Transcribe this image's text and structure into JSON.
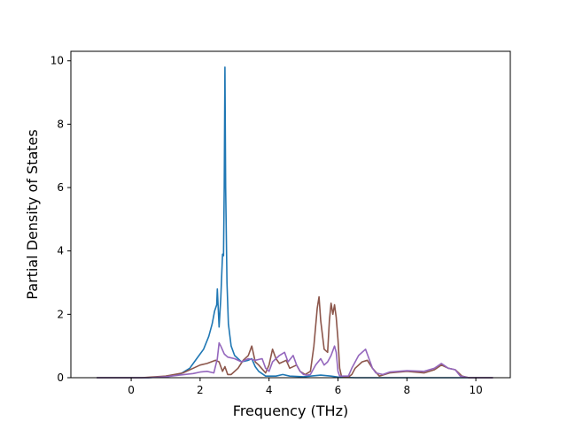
{
  "chart_data": {
    "type": "line",
    "xlabel": "Frequency (THz)",
    "ylabel": "Partial Density of States",
    "xlim": [
      -1.75,
      11.0
    ],
    "ylim": [
      0,
      10.3
    ],
    "x_ticks": [
      0,
      2,
      4,
      6,
      8,
      10
    ],
    "y_ticks": [
      0,
      2,
      4,
      6,
      8,
      10
    ],
    "grid": false,
    "series": [
      {
        "color": "#1f77b4",
        "points": [
          [
            -1.0,
            0
          ],
          [
            0.5,
            0
          ],
          [
            1.0,
            0.03
          ],
          [
            1.4,
            0.1
          ],
          [
            1.7,
            0.3
          ],
          [
            1.9,
            0.6
          ],
          [
            2.1,
            0.9
          ],
          [
            2.25,
            1.3
          ],
          [
            2.35,
            1.7
          ],
          [
            2.42,
            2.1
          ],
          [
            2.48,
            2.3
          ],
          [
            2.5,
            2.8
          ],
          [
            2.55,
            1.6
          ],
          [
            2.6,
            2.5
          ],
          [
            2.65,
            3.9
          ],
          [
            2.68,
            3.85
          ],
          [
            2.7,
            6.0
          ],
          [
            2.72,
            9.8
          ],
          [
            2.74,
            6.0
          ],
          [
            2.78,
            3.0
          ],
          [
            2.82,
            1.7
          ],
          [
            2.9,
            1.0
          ],
          [
            3.0,
            0.7
          ],
          [
            3.2,
            0.5
          ],
          [
            3.4,
            0.55
          ],
          [
            3.5,
            0.6
          ],
          [
            3.6,
            0.35
          ],
          [
            3.7,
            0.2
          ],
          [
            3.9,
            0.05
          ],
          [
            4.2,
            0.05
          ],
          [
            4.4,
            0.1
          ],
          [
            4.6,
            0.05
          ],
          [
            5.0,
            0.03
          ],
          [
            5.5,
            0.08
          ],
          [
            5.8,
            0.05
          ],
          [
            6.0,
            0.02
          ],
          [
            6.5,
            0
          ],
          [
            10.5,
            0
          ]
        ]
      },
      {
        "color": "#8c564b",
        "points": [
          [
            -1.0,
            0
          ],
          [
            0.3,
            0
          ],
          [
            1.0,
            0.05
          ],
          [
            1.5,
            0.15
          ],
          [
            1.8,
            0.3
          ],
          [
            2.0,
            0.4
          ],
          [
            2.2,
            0.45
          ],
          [
            2.45,
            0.55
          ],
          [
            2.55,
            0.5
          ],
          [
            2.65,
            0.2
          ],
          [
            2.72,
            0.35
          ],
          [
            2.8,
            0.1
          ],
          [
            2.9,
            0.1
          ],
          [
            3.1,
            0.3
          ],
          [
            3.25,
            0.55
          ],
          [
            3.4,
            0.7
          ],
          [
            3.5,
            1.0
          ],
          [
            3.6,
            0.5
          ],
          [
            3.7,
            0.4
          ],
          [
            3.9,
            0.15
          ],
          [
            4.0,
            0.4
          ],
          [
            4.1,
            0.9
          ],
          [
            4.2,
            0.6
          ],
          [
            4.3,
            0.45
          ],
          [
            4.5,
            0.55
          ],
          [
            4.6,
            0.3
          ],
          [
            4.8,
            0.4
          ],
          [
            4.9,
            0.2
          ],
          [
            5.05,
            0.1
          ],
          [
            5.2,
            0.2
          ],
          [
            5.3,
            1.0
          ],
          [
            5.4,
            2.2
          ],
          [
            5.45,
            2.55
          ],
          [
            5.5,
            1.8
          ],
          [
            5.6,
            0.9
          ],
          [
            5.7,
            0.8
          ],
          [
            5.75,
            1.8
          ],
          [
            5.8,
            2.35
          ],
          [
            5.85,
            2.0
          ],
          [
            5.9,
            2.3
          ],
          [
            5.95,
            1.9
          ],
          [
            6.0,
            1.2
          ],
          [
            6.05,
            0.3
          ],
          [
            6.1,
            0.05
          ],
          [
            6.3,
            0.02
          ],
          [
            6.4,
            0.1
          ],
          [
            6.5,
            0.3
          ],
          [
            6.7,
            0.5
          ],
          [
            6.85,
            0.55
          ],
          [
            7.0,
            0.3
          ],
          [
            7.2,
            0.05
          ],
          [
            7.5,
            0.15
          ],
          [
            8.0,
            0.2
          ],
          [
            8.5,
            0.15
          ],
          [
            8.8,
            0.25
          ],
          [
            9.0,
            0.4
          ],
          [
            9.2,
            0.3
          ],
          [
            9.4,
            0.25
          ],
          [
            9.6,
            0.05
          ],
          [
            9.8,
            0
          ],
          [
            10.5,
            0
          ]
        ]
      },
      {
        "color": "#9467bd",
        "points": [
          [
            -1.0,
            0
          ],
          [
            0.5,
            0
          ],
          [
            1.0,
            0.03
          ],
          [
            1.4,
            0.08
          ],
          [
            1.8,
            0.13
          ],
          [
            2.0,
            0.18
          ],
          [
            2.2,
            0.2
          ],
          [
            2.4,
            0.15
          ],
          [
            2.5,
            0.6
          ],
          [
            2.55,
            1.1
          ],
          [
            2.6,
            1.0
          ],
          [
            2.7,
            0.75
          ],
          [
            2.8,
            0.65
          ],
          [
            3.0,
            0.6
          ],
          [
            3.2,
            0.5
          ],
          [
            3.4,
            0.6
          ],
          [
            3.6,
            0.55
          ],
          [
            3.8,
            0.6
          ],
          [
            3.9,
            0.3
          ],
          [
            4.0,
            0.2
          ],
          [
            4.1,
            0.5
          ],
          [
            4.3,
            0.7
          ],
          [
            4.45,
            0.8
          ],
          [
            4.55,
            0.5
          ],
          [
            4.7,
            0.7
          ],
          [
            4.8,
            0.4
          ],
          [
            4.9,
            0.2
          ],
          [
            5.0,
            0.1
          ],
          [
            5.1,
            0.08
          ],
          [
            5.2,
            0.1
          ],
          [
            5.35,
            0.4
          ],
          [
            5.5,
            0.6
          ],
          [
            5.6,
            0.4
          ],
          [
            5.7,
            0.5
          ],
          [
            5.8,
            0.7
          ],
          [
            5.9,
            1.0
          ],
          [
            5.95,
            0.8
          ],
          [
            6.0,
            0.2
          ],
          [
            6.05,
            0.05
          ],
          [
            6.3,
            0.05
          ],
          [
            6.4,
            0.3
          ],
          [
            6.6,
            0.7
          ],
          [
            6.8,
            0.9
          ],
          [
            6.9,
            0.6
          ],
          [
            7.0,
            0.3
          ],
          [
            7.1,
            0.15
          ],
          [
            7.3,
            0.1
          ],
          [
            7.5,
            0.18
          ],
          [
            8.0,
            0.22
          ],
          [
            8.5,
            0.2
          ],
          [
            8.8,
            0.3
          ],
          [
            9.0,
            0.45
          ],
          [
            9.2,
            0.3
          ],
          [
            9.4,
            0.25
          ],
          [
            9.55,
            0.05
          ],
          [
            9.8,
            0
          ],
          [
            10.5,
            0
          ]
        ]
      }
    ]
  }
}
